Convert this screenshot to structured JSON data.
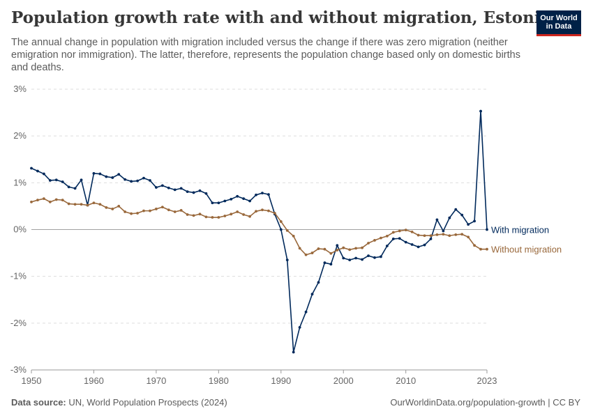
{
  "header": {
    "title": "Population growth rate with and without migration, Estonia",
    "subtitle": "The annual change in population with migration included versus the change if there was zero migration (neither emigration nor immigration). The latter, therefore, represents the population change based only on domestic births and deaths.",
    "logo_line1": "Our World",
    "logo_line2": "in Data"
  },
  "footer": {
    "source_label": "Data source:",
    "source_text": "UN, World Population Prospects (2024)",
    "url_text": "OurWorldinData.org/population-growth | CC BY"
  },
  "chart_data": {
    "type": "line",
    "ylim": [
      -3,
      3
    ],
    "yticks": [
      -3,
      -2,
      -1,
      0,
      1,
      2,
      3
    ],
    "ytick_labels": [
      "-3%",
      "-2%",
      "-1%",
      "0%",
      "1%",
      "2%",
      "3%"
    ],
    "xlim": [
      1950,
      2023
    ],
    "xticks": [
      1950,
      1960,
      1970,
      1980,
      1990,
      2000,
      2010,
      2023
    ],
    "xtick_labels": [
      "1950",
      "1960",
      "1970",
      "1980",
      "1990",
      "2000",
      "2010",
      "2023"
    ],
    "grid": "horizontal dashed",
    "legend": "inline-right",
    "x": [
      1950,
      1951,
      1952,
      1953,
      1954,
      1955,
      1956,
      1957,
      1958,
      1959,
      1960,
      1961,
      1962,
      1963,
      1964,
      1965,
      1966,
      1967,
      1968,
      1969,
      1970,
      1971,
      1972,
      1973,
      1974,
      1975,
      1976,
      1977,
      1978,
      1979,
      1980,
      1981,
      1982,
      1983,
      1984,
      1985,
      1986,
      1987,
      1988,
      1989,
      1990,
      1991,
      1992,
      1993,
      1994,
      1995,
      1996,
      1997,
      1998,
      1999,
      2000,
      2001,
      2002,
      2003,
      2004,
      2005,
      2006,
      2007,
      2008,
      2009,
      2010,
      2011,
      2012,
      2013,
      2014,
      2015,
      2016,
      2017,
      2018,
      2019,
      2020,
      2021,
      2022,
      2023
    ],
    "series": [
      {
        "name": "With migration",
        "color": "#00295b",
        "values": [
          1.31,
          1.25,
          1.19,
          1.05,
          1.06,
          1.02,
          0.91,
          0.88,
          1.06,
          0.52,
          1.2,
          1.19,
          1.13,
          1.11,
          1.18,
          1.07,
          1.03,
          1.04,
          1.1,
          1.05,
          0.9,
          0.94,
          0.89,
          0.85,
          0.88,
          0.81,
          0.79,
          0.83,
          0.77,
          0.57,
          0.57,
          0.61,
          0.65,
          0.71,
          0.66,
          0.61,
          0.74,
          0.78,
          0.75,
          0.33,
          0.0,
          -0.65,
          -2.62,
          -2.09,
          -1.76,
          -1.38,
          -1.13,
          -0.71,
          -0.74,
          -0.34,
          -0.61,
          -0.65,
          -0.61,
          -0.64,
          -0.56,
          -0.6,
          -0.58,
          -0.35,
          -0.2,
          -0.19,
          -0.27,
          -0.32,
          -0.37,
          -0.33,
          -0.2,
          0.21,
          -0.03,
          0.25,
          0.43,
          0.31,
          0.11,
          0.18,
          2.53,
          0.0
        ]
      },
      {
        "name": "Without migration",
        "color": "#99683b",
        "values": [
          0.59,
          0.63,
          0.66,
          0.59,
          0.64,
          0.63,
          0.55,
          0.54,
          0.54,
          0.52,
          0.57,
          0.54,
          0.47,
          0.44,
          0.5,
          0.38,
          0.34,
          0.35,
          0.4,
          0.4,
          0.44,
          0.48,
          0.42,
          0.38,
          0.41,
          0.32,
          0.3,
          0.33,
          0.27,
          0.26,
          0.26,
          0.29,
          0.33,
          0.38,
          0.32,
          0.28,
          0.39,
          0.42,
          0.4,
          0.35,
          0.17,
          -0.02,
          -0.14,
          -0.4,
          -0.54,
          -0.5,
          -0.41,
          -0.42,
          -0.51,
          -0.44,
          -0.39,
          -0.43,
          -0.4,
          -0.39,
          -0.29,
          -0.23,
          -0.18,
          -0.14,
          -0.06,
          -0.03,
          -0.01,
          -0.05,
          -0.12,
          -0.13,
          -0.13,
          -0.11,
          -0.1,
          -0.13,
          -0.11,
          -0.1,
          -0.16,
          -0.34,
          -0.42,
          -0.42
        ]
      }
    ]
  }
}
